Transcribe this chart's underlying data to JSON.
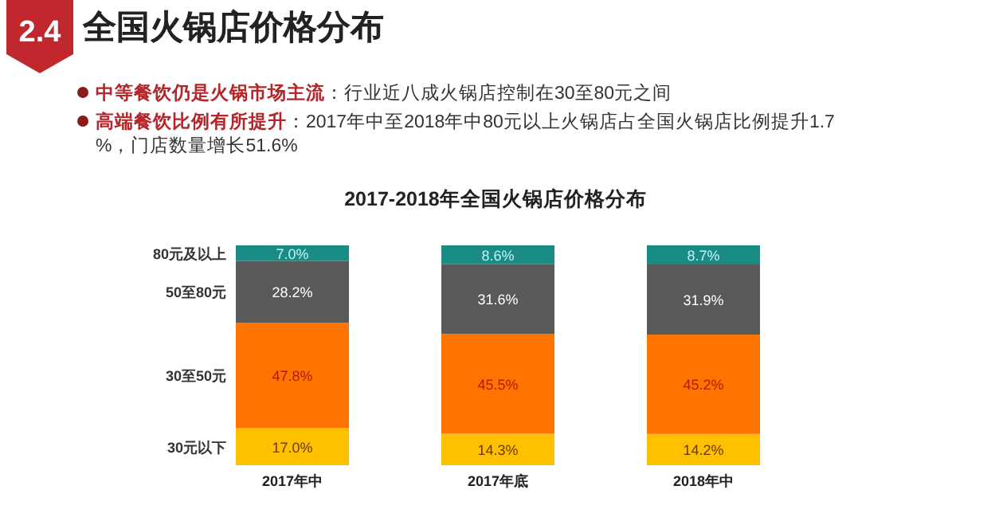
{
  "chart_data": {
    "type": "bar",
    "stacked": true,
    "title": "2017-2018年全国火锅店价格分布",
    "annotations": [
      "2.4",
      "全国火锅店价格分布",
      "中等餐饮仍是火锅市场主流：行业近八成火锅店控制在30至80元之间",
      "高端餐饮比例有所提升：2017年中至2018年中80元以上火锅店占全国火锅店比例提升1.7%，门店数量增长51.6%"
    ],
    "categories": [
      "2017年中",
      "2017年底",
      "2018年中"
    ],
    "series": [
      {
        "name": "30元以下",
        "color": "#ffc000",
        "values": [
          17.0,
          14.3,
          14.2
        ],
        "value_labels": [
          "17.0%",
          "14.3%",
          "14.2%"
        ]
      },
      {
        "name": "30至50元",
        "color": "#ff7400",
        "values": [
          47.8,
          45.5,
          45.2
        ],
        "value_labels": [
          "47.8%",
          "45.5%",
          "45.2%"
        ]
      },
      {
        "name": "50至80元",
        "color": "#595959",
        "values": [
          28.2,
          31.6,
          31.9
        ],
        "value_labels": [
          "28.2%",
          "31.6%",
          "31.9%"
        ]
      },
      {
        "name": "80元及以上",
        "color": "#1a8c85",
        "values": [
          7.0,
          8.6,
          8.7
        ],
        "value_labels": [
          "7.0%",
          "8.6%",
          "8.7%"
        ]
      }
    ]
  }
}
